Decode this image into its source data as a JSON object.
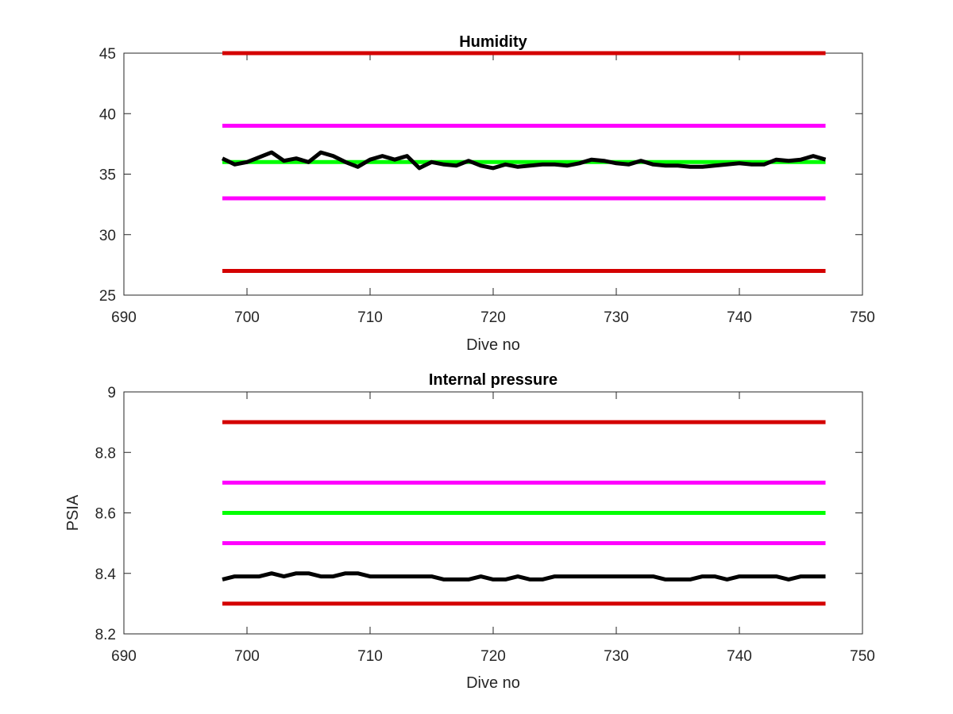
{
  "chart_data": [
    {
      "type": "line",
      "title": "Humidity",
      "xlabel": "Dive no",
      "ylabel": "",
      "xlim": [
        690,
        750
      ],
      "ylim": [
        25,
        45
      ],
      "xticks": [
        690,
        700,
        710,
        720,
        730,
        740,
        750
      ],
      "yticks": [
        25,
        30,
        35,
        40,
        45
      ],
      "grid": false,
      "series": [
        {
          "color": "#d40000",
          "x": [
            698,
            747
          ],
          "y": [
            45,
            45
          ]
        },
        {
          "color": "#ff00ff",
          "x": [
            698,
            747
          ],
          "y": [
            39,
            39
          ]
        },
        {
          "color": "#00ff00",
          "x": [
            698,
            747
          ],
          "y": [
            36,
            36
          ]
        },
        {
          "color": "#ff00ff",
          "x": [
            698,
            747
          ],
          "y": [
            33,
            33
          ]
        },
        {
          "color": "#d40000",
          "x": [
            698,
            747
          ],
          "y": [
            27,
            27
          ]
        },
        {
          "color": "#000000",
          "x": [
            698,
            699,
            700,
            701,
            702,
            703,
            704,
            705,
            706,
            707,
            708,
            709,
            710,
            711,
            712,
            713,
            714,
            715,
            716,
            717,
            718,
            719,
            720,
            721,
            722,
            723,
            724,
            725,
            726,
            727,
            728,
            729,
            730,
            731,
            732,
            733,
            734,
            735,
            736,
            737,
            738,
            739,
            740,
            741,
            742,
            743,
            744,
            745,
            746,
            747
          ],
          "y": [
            36.3,
            35.8,
            36.0,
            36.4,
            36.8,
            36.1,
            36.3,
            36.0,
            36.8,
            36.5,
            36.0,
            35.6,
            36.2,
            36.5,
            36.2,
            36.5,
            35.5,
            36.0,
            35.8,
            35.7,
            36.1,
            35.7,
            35.5,
            35.8,
            35.6,
            35.7,
            35.8,
            35.8,
            35.7,
            35.9,
            36.2,
            36.1,
            35.9,
            35.8,
            36.1,
            35.8,
            35.7,
            35.7,
            35.6,
            35.6,
            35.7,
            35.8,
            35.9,
            35.8,
            35.8,
            36.2,
            36.1,
            36.2,
            36.5,
            36.2
          ]
        }
      ]
    },
    {
      "type": "line",
      "title": "Internal pressure",
      "xlabel": "Dive no",
      "ylabel": "PSIA",
      "xlim": [
        690,
        750
      ],
      "ylim": [
        8.2,
        9.0
      ],
      "xticks": [
        690,
        700,
        710,
        720,
        730,
        740,
        750
      ],
      "yticks": [
        8.2,
        8.4,
        8.6,
        8.8,
        9
      ],
      "grid": false,
      "series": [
        {
          "color": "#d40000",
          "x": [
            698,
            747
          ],
          "y": [
            8.9,
            8.9
          ]
        },
        {
          "color": "#ff00ff",
          "x": [
            698,
            747
          ],
          "y": [
            8.7,
            8.7
          ]
        },
        {
          "color": "#00ff00",
          "x": [
            698,
            747
          ],
          "y": [
            8.6,
            8.6
          ]
        },
        {
          "color": "#ff00ff",
          "x": [
            698,
            747
          ],
          "y": [
            8.5,
            8.5
          ]
        },
        {
          "color": "#d40000",
          "x": [
            698,
            747
          ],
          "y": [
            8.3,
            8.3
          ]
        },
        {
          "color": "#000000",
          "x": [
            698,
            699,
            700,
            701,
            702,
            703,
            704,
            705,
            706,
            707,
            708,
            709,
            710,
            711,
            712,
            713,
            714,
            715,
            716,
            717,
            718,
            719,
            720,
            721,
            722,
            723,
            724,
            725,
            726,
            727,
            728,
            729,
            730,
            731,
            732,
            733,
            734,
            735,
            736,
            737,
            738,
            739,
            740,
            741,
            742,
            743,
            744,
            745,
            746,
            747
          ],
          "y": [
            8.38,
            8.39,
            8.39,
            8.39,
            8.4,
            8.39,
            8.4,
            8.4,
            8.39,
            8.39,
            8.4,
            8.4,
            8.39,
            8.39,
            8.39,
            8.39,
            8.39,
            8.39,
            8.38,
            8.38,
            8.38,
            8.39,
            8.38,
            8.38,
            8.39,
            8.38,
            8.38,
            8.39,
            8.39,
            8.39,
            8.39,
            8.39,
            8.39,
            8.39,
            8.39,
            8.39,
            8.38,
            8.38,
            8.38,
            8.39,
            8.39,
            8.38,
            8.39,
            8.39,
            8.39,
            8.39,
            8.38,
            8.39,
            8.39,
            8.39
          ]
        }
      ]
    }
  ]
}
